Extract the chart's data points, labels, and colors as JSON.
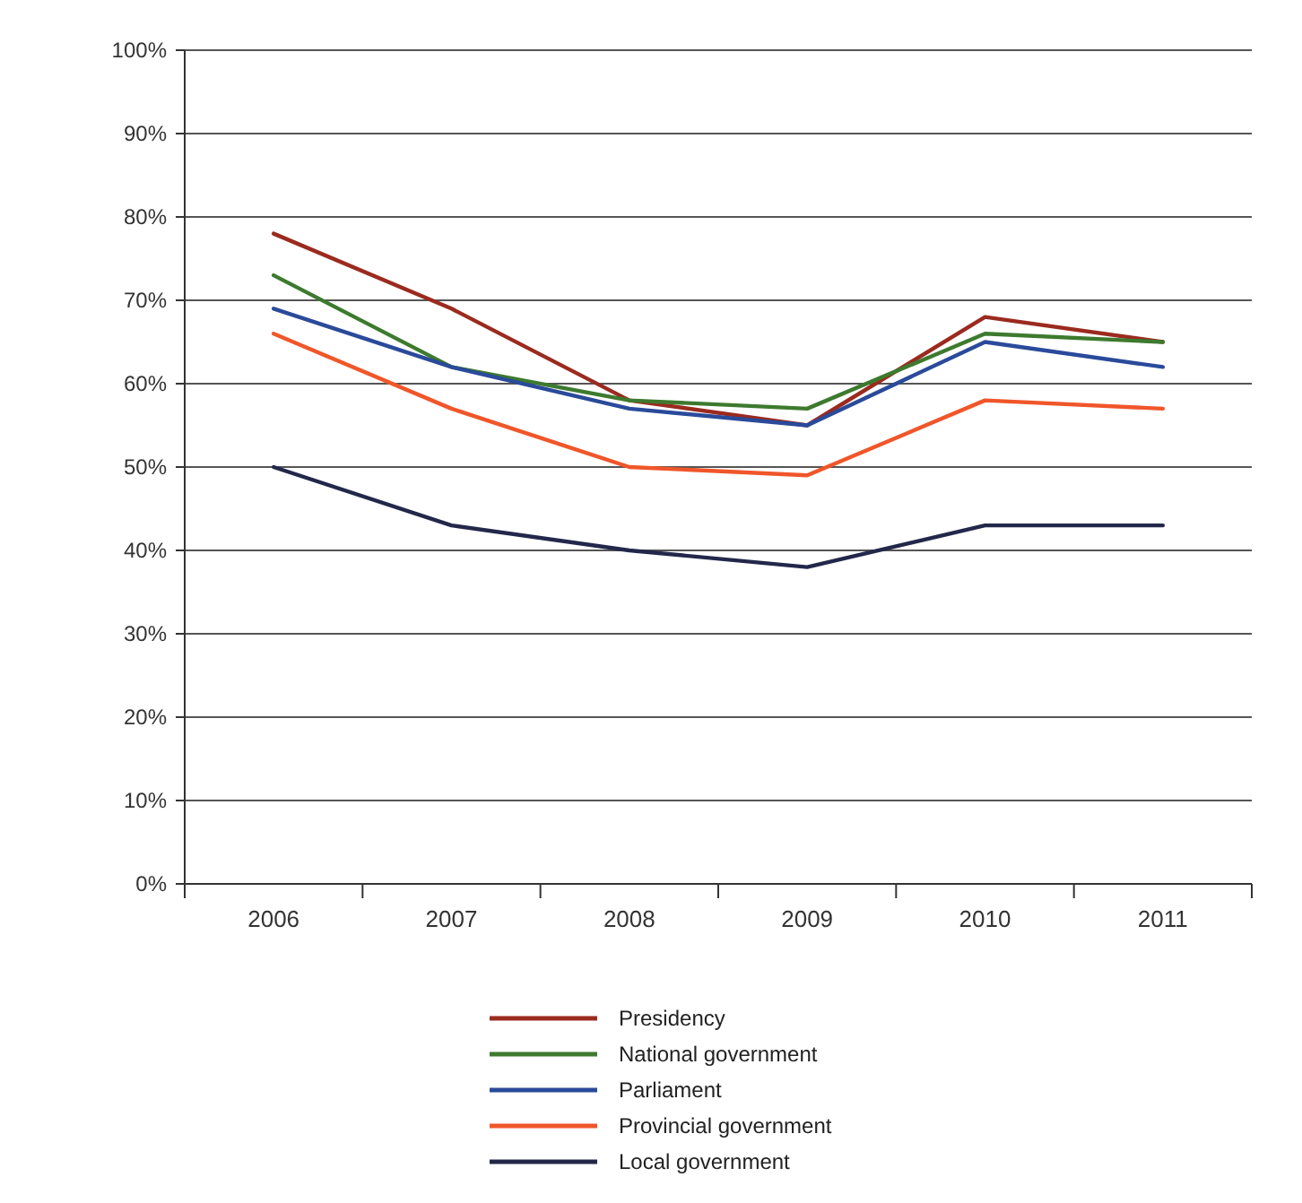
{
  "chart_data": {
    "type": "line",
    "categories": [
      "2006",
      "2007",
      "2008",
      "2009",
      "2010",
      "2011"
    ],
    "series": [
      {
        "name": "Presidency",
        "color": "#9b2a1f",
        "values": [
          78,
          69,
          58,
          55,
          68,
          65
        ]
      },
      {
        "name": "National government",
        "color": "#3d7a2e",
        "values": [
          73,
          62,
          58,
          57,
          66,
          65
        ]
      },
      {
        "name": "Parliament",
        "color": "#2a4a9a",
        "values": [
          69,
          62,
          57,
          55,
          65,
          62
        ]
      },
      {
        "name": "Provincial government",
        "color": "#f0562a",
        "values": [
          66,
          57,
          50,
          49,
          58,
          57
        ]
      },
      {
        "name": "Local government",
        "color": "#23284a",
        "values": [
          50,
          43,
          40,
          38,
          43,
          43
        ]
      }
    ],
    "ylim": [
      0,
      100
    ],
    "yticks": [
      {
        "value": 0,
        "label": "0%"
      },
      {
        "value": 10,
        "label": "10%"
      },
      {
        "value": 20,
        "label": "20%"
      },
      {
        "value": 30,
        "label": "30%"
      },
      {
        "value": 40,
        "label": "40%"
      },
      {
        "value": 50,
        "label": "50%"
      },
      {
        "value": 60,
        "label": "60%"
      },
      {
        "value": 70,
        "label": "70%"
      },
      {
        "value": 80,
        "label": "80%"
      },
      {
        "value": 90,
        "label": "90%"
      },
      {
        "value": 100,
        "label": "100%"
      }
    ],
    "grid": "y",
    "legend": "bottom",
    "marker": "none",
    "line_style": "solid"
  }
}
